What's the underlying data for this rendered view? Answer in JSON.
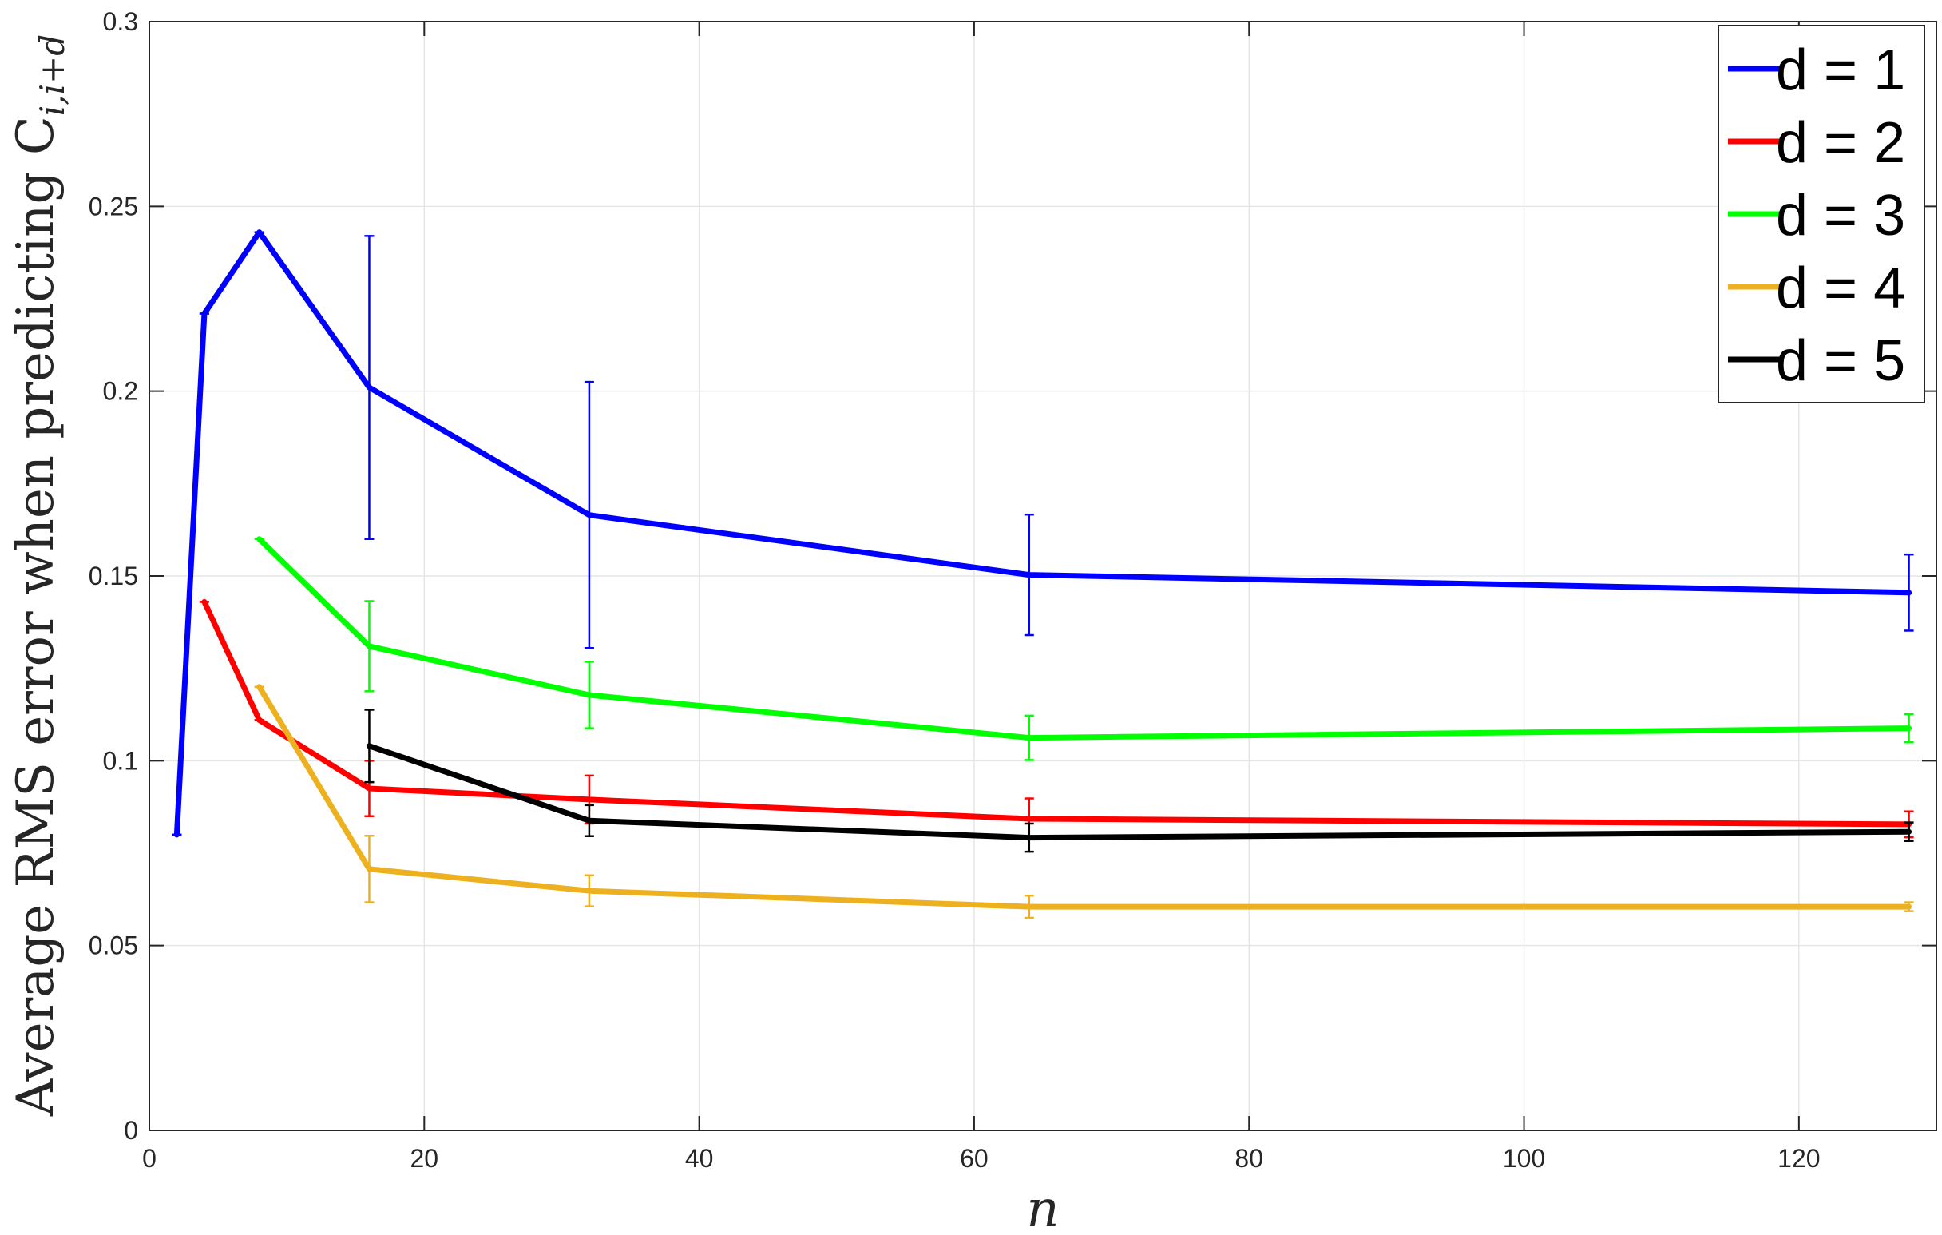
{
  "chart_data": {
    "type": "line",
    "xlabel": "n",
    "ylabel": "Average RMS error when predicting C",
    "ylabel_subscript": "i,i+d",
    "xlim": [
      0,
      130
    ],
    "ylim": [
      0,
      0.3
    ],
    "xticks": [
      0,
      20,
      40,
      60,
      80,
      100,
      120
    ],
    "yticks": [
      0,
      0.05,
      0.1,
      0.15,
      0.2,
      0.25,
      0.3
    ],
    "xtick_labels": [
      "0",
      "20",
      "40",
      "60",
      "80",
      "100",
      "120"
    ],
    "ytick_labels": [
      "0",
      "0.05",
      "0.1",
      "0.15",
      "0.2",
      "0.25",
      "0.3"
    ],
    "grid": true,
    "legend_position": "top-right",
    "error_bars": true,
    "series": [
      {
        "name": "d = 1",
        "color": "#0000ff",
        "x": [
          2,
          4,
          8,
          16,
          32,
          64,
          128
        ],
        "y": [
          0.08,
          0.221,
          0.243,
          0.201,
          0.1665,
          0.1503,
          0.1455
        ],
        "err": [
          0.0,
          0.0,
          0.0,
          0.041,
          0.036,
          0.0163,
          0.0103
        ]
      },
      {
        "name": "d = 2",
        "color": "#ff0000",
        "x": [
          4,
          8,
          16,
          32,
          64,
          128
        ],
        "y": [
          0.143,
          0.111,
          0.0925,
          0.0895,
          0.0843,
          0.0828
        ],
        "err": [
          0.0,
          0.0,
          0.0075,
          0.0065,
          0.0055,
          0.0035
        ]
      },
      {
        "name": "d = 3",
        "color": "#00ff00",
        "x": [
          8,
          16,
          32,
          64,
          128
        ],
        "y": [
          0.16,
          0.131,
          0.1178,
          0.1062,
          0.1088
        ],
        "err": [
          0.0,
          0.0122,
          0.009,
          0.006,
          0.0038
        ]
      },
      {
        "name": "d = 4",
        "color": "#edb120",
        "x": [
          8,
          16,
          32,
          64,
          128
        ],
        "y": [
          0.12,
          0.0707,
          0.0648,
          0.0605,
          0.0605
        ],
        "err": [
          0.0,
          0.009,
          0.0042,
          0.003,
          0.0012
        ]
      },
      {
        "name": "d = 5",
        "color": "#000000",
        "x": [
          16,
          32,
          64,
          128
        ],
        "y": [
          0.104,
          0.0838,
          0.0792,
          0.0808
        ],
        "err": [
          0.0098,
          0.0042,
          0.0038,
          0.0025
        ]
      }
    ]
  }
}
